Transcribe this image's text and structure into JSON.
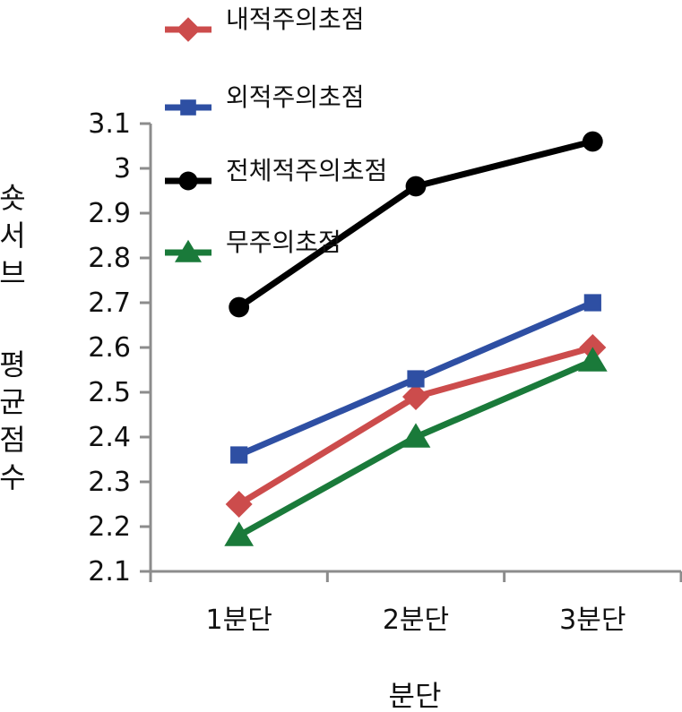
{
  "chart_data": {
    "type": "line",
    "categories": [
      "1분단",
      "2분단",
      "3분단"
    ],
    "ylim": [
      2.1,
      3.1
    ],
    "ytick_step": 0.1,
    "yticks": [
      "2.1",
      "2.2",
      "2.3",
      "2.4",
      "2.5",
      "2.6",
      "2.7",
      "2.8",
      "2.9",
      "3",
      "3.1"
    ],
    "xlabel": "분단",
    "ylabel": "숏서브 평균점수",
    "grid": false,
    "legend_position": "top-center",
    "series": [
      {
        "name": "내적주의초점",
        "values": [
          2.25,
          2.49,
          2.6
        ],
        "color": "#cc4c4c",
        "marker": "diamond"
      },
      {
        "name": "외적주의초점",
        "values": [
          2.36,
          2.53,
          2.7
        ],
        "color": "#2e4fa3",
        "marker": "square"
      },
      {
        "name": "전체적주의초점",
        "values": [
          2.69,
          2.96,
          3.06
        ],
        "color": "#000000",
        "marker": "circle"
      },
      {
        "name": "무주의초점",
        "values": [
          2.18,
          2.4,
          2.57
        ],
        "color": "#1a7a3a",
        "marker": "triangle"
      }
    ]
  }
}
